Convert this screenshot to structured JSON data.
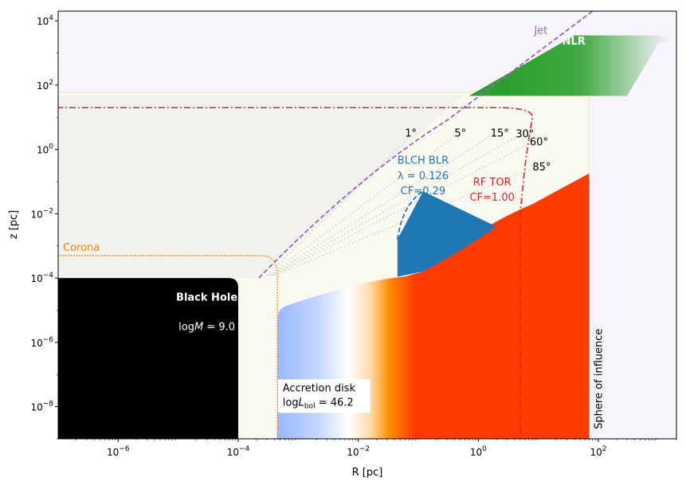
{
  "chart_data": {
    "type": "area",
    "xlabel": "R [pc]",
    "ylabel": "z [pc]",
    "xscale": "log",
    "yscale": "log",
    "xlim": [
      1e-07,
      2000
    ],
    "ylim": [
      1e-09,
      20000.0
    ],
    "x_ticks": [
      {
        "value": 1e-06,
        "base": "10",
        "exp": "−6"
      },
      {
        "value": 0.0001,
        "base": "10",
        "exp": "−4"
      },
      {
        "value": 0.01,
        "base": "10",
        "exp": "−2"
      },
      {
        "value": 1,
        "base": "10",
        "exp": "0"
      },
      {
        "value": 100,
        "base": "10",
        "exp": "2"
      }
    ],
    "y_ticks": [
      {
        "value": 1e-08,
        "base": "10",
        "exp": "−8"
      },
      {
        "value": 1e-06,
        "base": "10",
        "exp": "−6"
      },
      {
        "value": 0.0001,
        "base": "10",
        "exp": "−4"
      },
      {
        "value": 0.01,
        "base": "10",
        "exp": "−2"
      },
      {
        "value": 1,
        "base": "10",
        "exp": "0"
      },
      {
        "value": 100,
        "base": "10",
        "exp": "2"
      },
      {
        "value": 10000,
        "base": "10",
        "exp": "4"
      }
    ],
    "labels": {
      "black_hole": "Black Hole",
      "mass_prefix": "log",
      "mass_var": "M",
      "mass_value": " = 9.0",
      "corona": "Corona",
      "disk_title": "Accretion disk",
      "disk_prefix": "log",
      "disk_var": "L",
      "disk_sub": "bol",
      "disk_value": " = 46.2",
      "blr_1": "BLCH BLR",
      "blr_2": "λ = 0.126",
      "blr_3": "CF=0.29",
      "tor_1": "RF TOR",
      "tor_2": "CF=1.00",
      "jet": "Jet",
      "nlr": "NLR",
      "soi": "Sphere of influence"
    },
    "angles": [
      {
        "text": "1°",
        "R": 0.06,
        "z": 3.2
      },
      {
        "text": "5°",
        "R": 0.4,
        "z": 3.2
      },
      {
        "text": "15°",
        "R": 1.6,
        "z": 3.2
      },
      {
        "text": "30°",
        "R": 4.2,
        "z": 3.0
      },
      {
        "text": "60°",
        "R": 7.2,
        "z": 1.7
      },
      {
        "text": "85°",
        "R": 8.0,
        "z": 0.28
      }
    ],
    "black_hole": {
      "R_max": 0.0001,
      "z_max": 0.0001
    },
    "corona": {
      "R": 0.00045,
      "z": 0.0005
    },
    "disk": {
      "R_in": 0.00045,
      "R_out": 70,
      "z_in": 1.2e-05,
      "z_out": 0.18
    },
    "blr": {
      "R_in": 0.045,
      "R_peak": 0.12,
      "R_out": 2.0,
      "z_top": 0.05,
      "z_base": 0.00015
    },
    "torus": {
      "R_outer": 5,
      "z_top": 20
    },
    "envelope": {
      "z_max": 60,
      "R_max": 70
    },
    "jet": {
      "R_start": 0.00022,
      "z_start": 0.0001,
      "R_end": 80,
      "z_end": 20000
    },
    "nlr": {
      "z_bottom": 55,
      "z_top": 3500,
      "R_out": 1000
    },
    "sphere_of_influence_R": 70
  },
  "colors": {
    "background_lavender": "#f7f4fc",
    "envelope": "#f9f9f0",
    "grey_region": "#f2f1ec",
    "black_hole": "#000000",
    "corona": "#ff7f0e",
    "disk_blue": "#8fb0ff",
    "disk_orange": "#ff8c00",
    "disk_red": "#ff3c00",
    "blr": "#1f77b4",
    "torus": "#d62728",
    "jet": "#9467bd",
    "nlr": "#2ca02c",
    "envelope_edge": "#d8d070"
  }
}
